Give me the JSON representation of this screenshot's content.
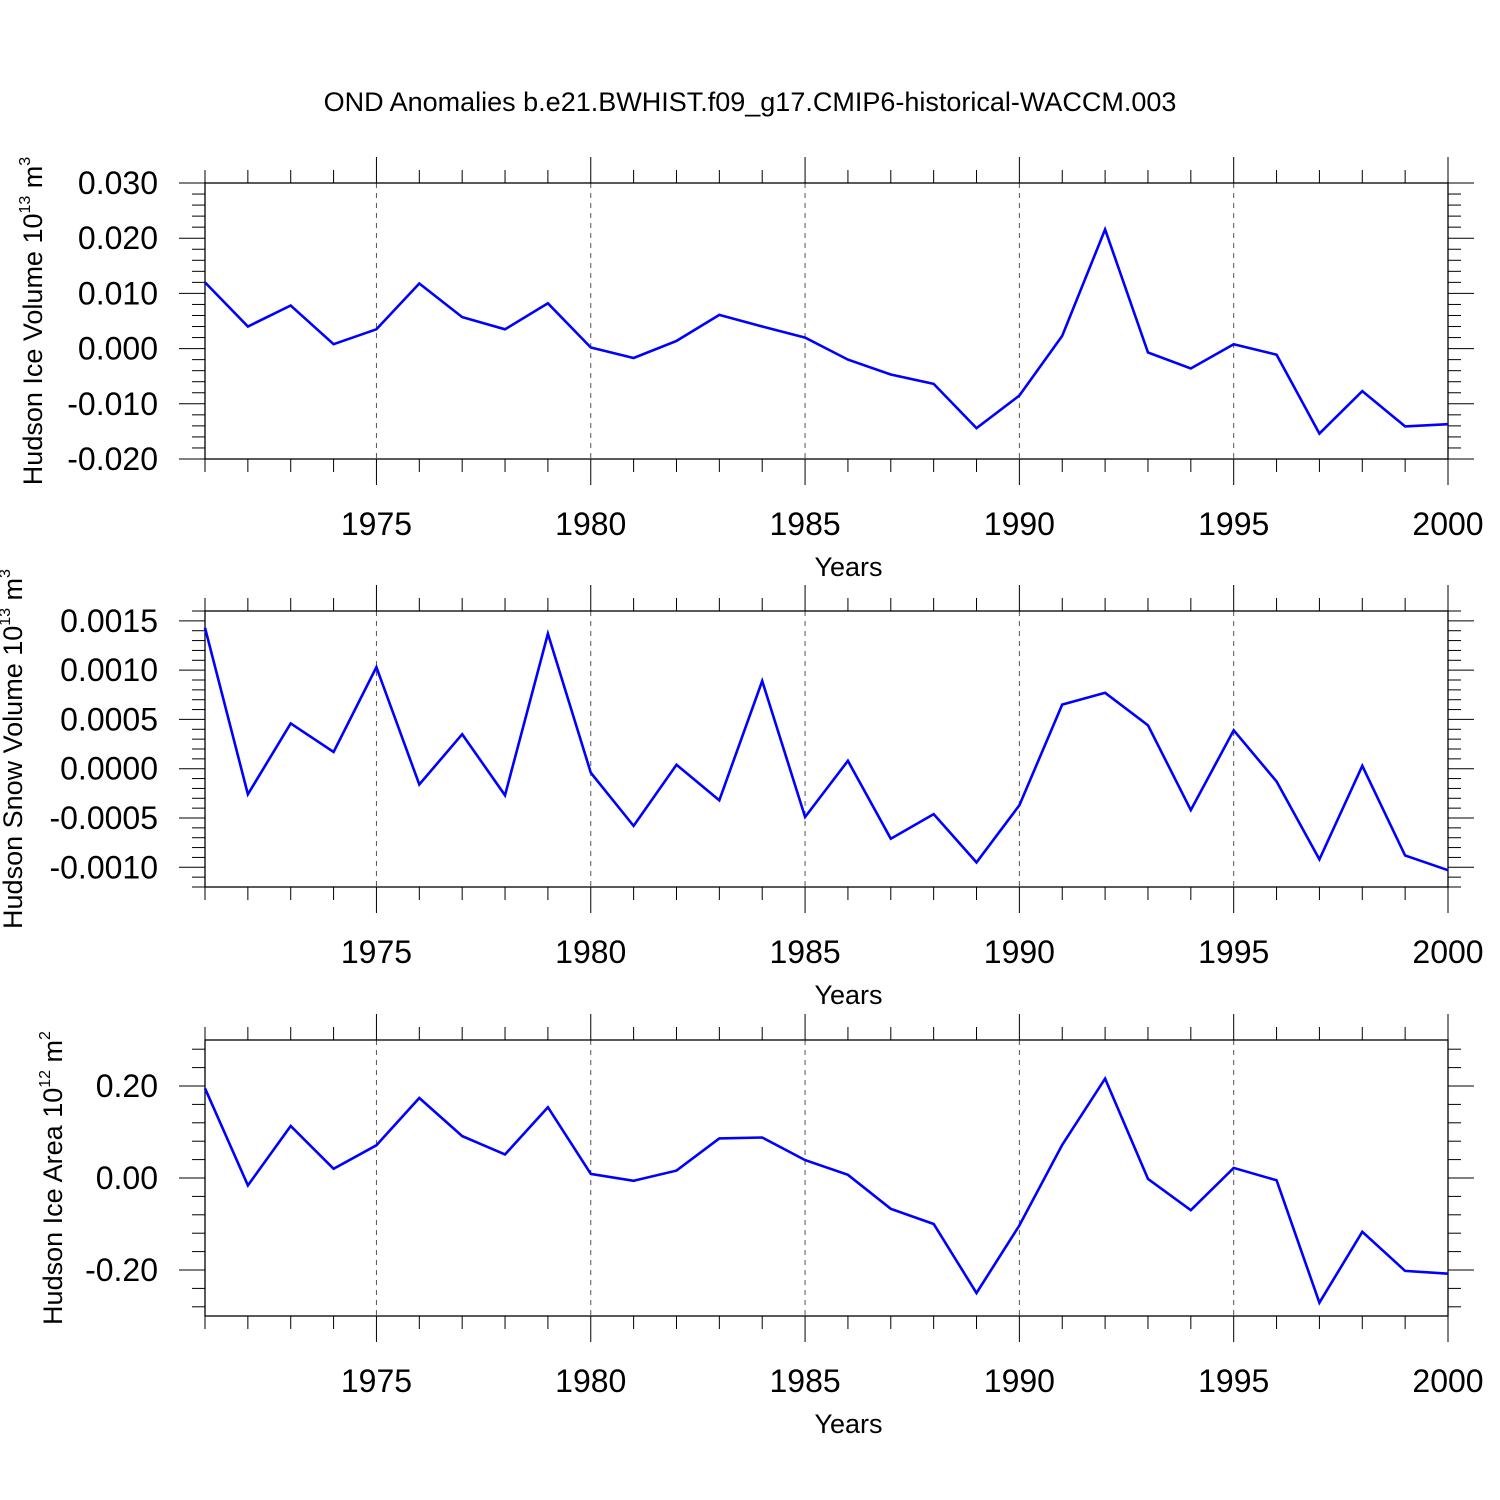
{
  "title": "OND Anomalies b.e21.BWHIST.f09_g17.CMIP6-historical-WACCM.003",
  "line_color": "#0000ff",
  "chart_data": [
    {
      "type": "line",
      "ylabel": {
        "text": "Hudson Ice Volume 10",
        "exp": "13",
        "unit": " m",
        "unit_exp": "3"
      },
      "xlabel": "Years",
      "xlim": [
        1971,
        2000
      ],
      "ylim": [
        -0.02,
        0.03
      ],
      "xticks": [
        1975,
        1980,
        1985,
        1990,
        1995,
        2000
      ],
      "xtick_labels": [
        "1975",
        "1980",
        "1985",
        "1990",
        "1995",
        "2000"
      ],
      "yticks": [
        0.03,
        0.02,
        0.01,
        0.0,
        -0.01,
        -0.02
      ],
      "ytick_labels": [
        "0.030",
        "0.020",
        "0.010",
        "0.000",
        "-0.010",
        "-0.020"
      ],
      "grid": "dashed vertical at major x ticks",
      "x": [
        1971,
        1972,
        1973,
        1974,
        1975,
        1976,
        1977,
        1978,
        1979,
        1980,
        1981,
        1982,
        1983,
        1984,
        1985,
        1986,
        1987,
        1988,
        1989,
        1990,
        1991,
        1992,
        1993,
        1994,
        1995,
        1996,
        1997,
        1998,
        1999,
        2000
      ],
      "values": [
        0.012,
        0.004,
        0.0078,
        0.0008,
        0.0035,
        0.0118,
        0.0057,
        0.0035,
        0.0082,
        0.0002,
        -0.0017,
        0.0014,
        0.0061,
        0.004,
        0.002,
        -0.002,
        -0.0047,
        -0.0064,
        -0.0144,
        -0.0085,
        0.0023,
        0.0216,
        -0.0007,
        -0.0036,
        0.0008,
        -0.0011,
        -0.0154,
        -0.0077,
        -0.0141,
        -0.0137
      ]
    },
    {
      "type": "line",
      "ylabel": {
        "text": "Hudson Snow Volume 10",
        "exp": "13",
        "unit": " m",
        "unit_exp": "3"
      },
      "xlabel": "Years",
      "xlim": [
        1971,
        2000
      ],
      "ylim": [
        -0.0012,
        0.0016
      ],
      "xticks": [
        1975,
        1980,
        1985,
        1990,
        1995,
        2000
      ],
      "xtick_labels": [
        "1975",
        "1980",
        "1985",
        "1990",
        "1995",
        "2000"
      ],
      "yticks": [
        0.0015,
        0.001,
        0.0005,
        0.0,
        -0.0005,
        -0.001
      ],
      "ytick_labels": [
        "0.0015",
        "0.0010",
        "0.0005",
        "0.0000",
        "-0.0005",
        "-0.0010"
      ],
      "grid": "dashed vertical at major x ticks",
      "x": [
        1971,
        1972,
        1973,
        1974,
        1975,
        1976,
        1977,
        1978,
        1979,
        1980,
        1981,
        1982,
        1983,
        1984,
        1985,
        1986,
        1987,
        1988,
        1989,
        1990,
        1991,
        1992,
        1993,
        1994,
        1995,
        1996,
        1997,
        1998,
        1999,
        2000
      ],
      "values": [
        0.00143,
        -0.00026,
        0.00046,
        0.00017,
        0.00103,
        -0.00016,
        0.00035,
        -0.00027,
        0.00137,
        -4e-05,
        -0.00058,
        4e-05,
        -0.00032,
        0.00089,
        -0.00049,
        8e-05,
        -0.00071,
        -0.00046,
        -0.00095,
        -0.00037,
        0.00065,
        0.00077,
        0.00044,
        -0.00042,
        0.00039,
        -0.00013,
        -0.00092,
        3e-05,
        -0.00088,
        -0.00103
      ]
    },
    {
      "type": "line",
      "ylabel": {
        "text": "Hudson Ice Area 10",
        "exp": "12",
        "unit": " m",
        "unit_exp": "2"
      },
      "xlabel": "Years",
      "xlim": [
        1971,
        2000
      ],
      "ylim": [
        -0.3,
        0.3
      ],
      "xticks": [
        1975,
        1980,
        1985,
        1990,
        1995,
        2000
      ],
      "xtick_labels": [
        "1975",
        "1980",
        "1985",
        "1990",
        "1995",
        "2000"
      ],
      "yticks": [
        0.2,
        0.0,
        -0.2
      ],
      "ytick_labels": [
        "0.20",
        "0.00",
        "-0.20"
      ],
      "grid": "dashed vertical at major x ticks",
      "x": [
        1971,
        1972,
        1973,
        1974,
        1975,
        1976,
        1977,
        1978,
        1979,
        1980,
        1981,
        1982,
        1983,
        1984,
        1985,
        1986,
        1987,
        1988,
        1989,
        1990,
        1991,
        1992,
        1993,
        1994,
        1995,
        1996,
        1997,
        1998,
        1999,
        2000
      ],
      "values": [
        0.195,
        -0.016,
        0.113,
        0.02,
        0.071,
        0.174,
        0.091,
        0.051,
        0.154,
        0.009,
        -0.006,
        0.016,
        0.086,
        0.088,
        0.039,
        0.007,
        -0.067,
        -0.1,
        -0.25,
        -0.103,
        0.072,
        0.216,
        -0.002,
        -0.07,
        0.022,
        -0.005,
        -0.271,
        -0.117,
        -0.202,
        -0.208
      ]
    }
  ]
}
